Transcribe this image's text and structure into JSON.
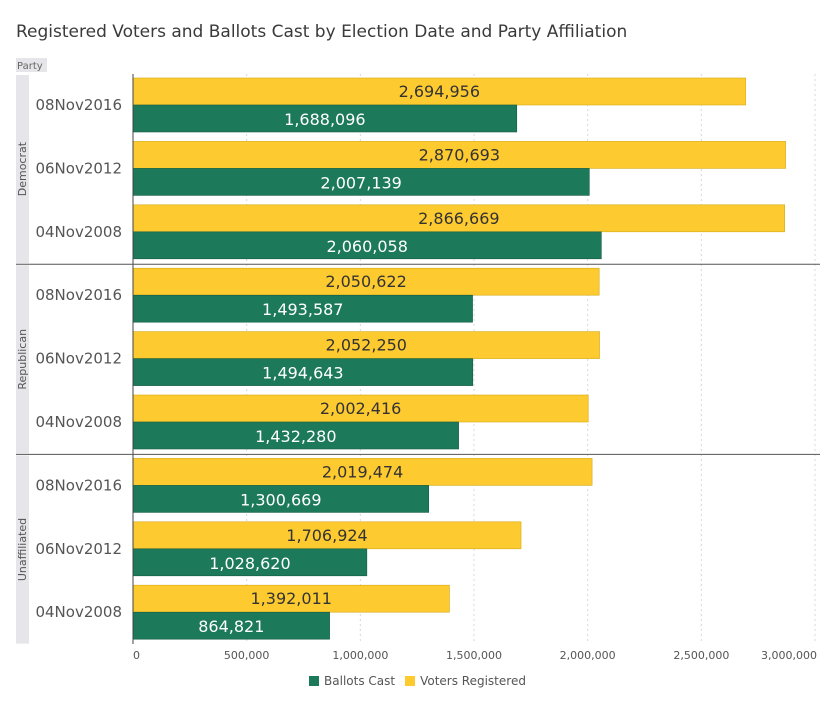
{
  "chart_data": {
    "type": "bar",
    "orientation": "horizontal",
    "title": "Registered Voters and Ballots Cast by Election Date and Party Affiliation",
    "group_axis_label": "Party",
    "xlim": [
      0,
      3000000
    ],
    "x_ticks": [
      "0",
      "500,000",
      "1,000,000",
      "1,500,000",
      "2,000,000",
      "2,500,000",
      "3,000,000"
    ],
    "x_tick_values": [
      0,
      500000,
      1000000,
      1500000,
      2000000,
      2500000,
      3000000
    ],
    "grid": true,
    "legend_position": "bottom-center",
    "series": [
      {
        "name": "Ballots Cast",
        "color": "#1c7a5a"
      },
      {
        "name": "Voters Registered",
        "color": "#fdca30"
      }
    ],
    "groups": [
      {
        "party": "Democrat",
        "rows": [
          {
            "date": "08Nov2016",
            "voters_registered": 2694956,
            "voters_label": "2,694,956",
            "ballots_cast": 1688096,
            "ballots_label": "1,688,096"
          },
          {
            "date": "06Nov2012",
            "voters_registered": 2870693,
            "voters_label": "2,870,693",
            "ballots_cast": 2007139,
            "ballots_label": "2,007,139"
          },
          {
            "date": "04Nov2008",
            "voters_registered": 2866669,
            "voters_label": "2,866,669",
            "ballots_cast": 2060058,
            "ballots_label": "2,060,058"
          }
        ]
      },
      {
        "party": "Republican",
        "rows": [
          {
            "date": "08Nov2016",
            "voters_registered": 2050622,
            "voters_label": "2,050,622",
            "ballots_cast": 1493587,
            "ballots_label": "1,493,587"
          },
          {
            "date": "06Nov2012",
            "voters_registered": 2052250,
            "voters_label": "2,052,250",
            "ballots_cast": 1494643,
            "ballots_label": "1,494,643"
          },
          {
            "date": "04Nov2008",
            "voters_registered": 2002416,
            "voters_label": "2,002,416",
            "ballots_cast": 1432280,
            "ballots_label": "1,432,280"
          }
        ]
      },
      {
        "party": "Unaffiliated",
        "rows": [
          {
            "date": "08Nov2016",
            "voters_registered": 2019474,
            "voters_label": "2,019,474",
            "ballots_cast": 1300669,
            "ballots_label": "1,300,669"
          },
          {
            "date": "06Nov2012",
            "voters_registered": 1706924,
            "voters_label": "1,706,924",
            "ballots_cast": 1028620,
            "ballots_label": "1,028,620"
          },
          {
            "date": "04Nov2008",
            "voters_registered": 1392011,
            "voters_label": "1,392,011",
            "ballots_cast": 864821,
            "ballots_label": "864,821"
          }
        ]
      }
    ]
  }
}
